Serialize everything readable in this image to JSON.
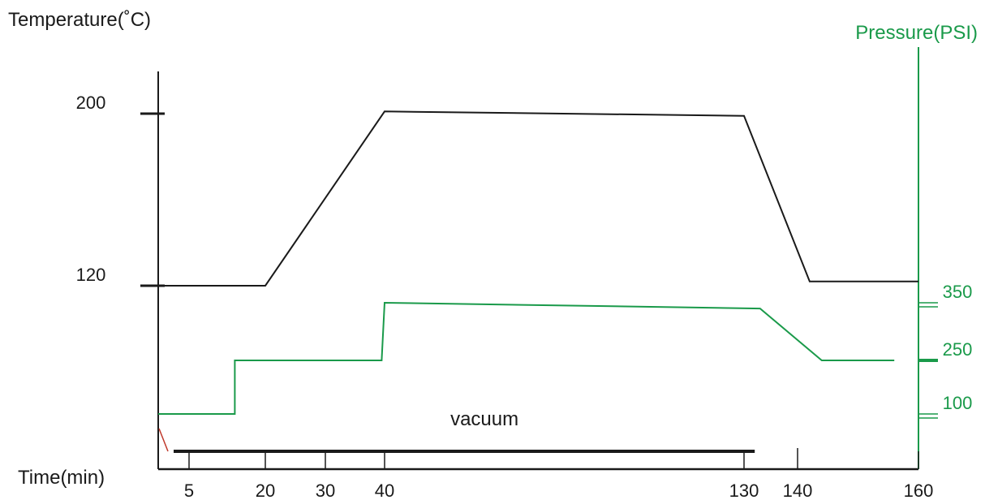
{
  "chart_data": {
    "type": "line",
    "title": "",
    "y_left_label": "Temperature(˚C)",
    "y_right_label": "Pressure(PSI)",
    "x_label": "Time(min)",
    "x_ticks": [
      5,
      20,
      30,
      40,
      130,
      140,
      160
    ],
    "y_left_ticks": [
      120,
      200
    ],
    "y_right_ticks": [
      100,
      250,
      350
    ],
    "colors": {
      "temperature": "#1a1a1a",
      "pressure": "#1a9a4a",
      "vacuum": "#1a1a1a",
      "accent_red": "#c0392b"
    },
    "series": [
      {
        "axis": "left",
        "points": [
          [
            0,
            120
          ],
          [
            20,
            120
          ],
          [
            40,
            201
          ],
          [
            130,
            199
          ],
          [
            142,
            122
          ],
          [
            160,
            122
          ]
        ]
      },
      {
        "axis": "right",
        "points": [
          [
            0,
            100
          ],
          [
            14,
            100
          ],
          [
            14,
            250
          ],
          [
            39.5,
            250
          ],
          [
            40,
            350
          ],
          [
            133,
            340
          ],
          [
            144,
            250
          ],
          [
            156,
            250
          ]
        ]
      }
    ],
    "annotations": [
      {
        "text": "vacuum",
        "x_range": [
          2.5,
          132
        ]
      }
    ]
  }
}
